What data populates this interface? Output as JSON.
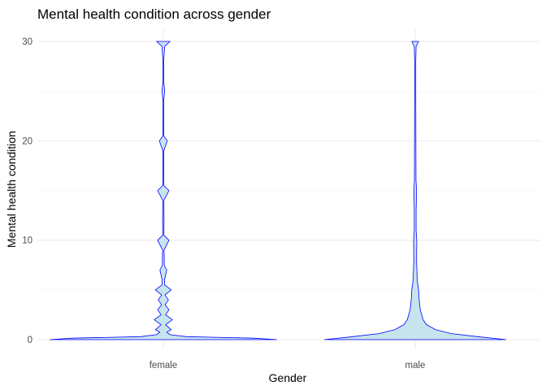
{
  "chart_data": {
    "type": "violin",
    "title": "Mental health condition across gender",
    "xlabel": "Gender",
    "ylabel": "Mental health condition",
    "categories": [
      "female",
      "male"
    ],
    "ylim": [
      0,
      30
    ],
    "yticks": [
      0,
      10,
      20,
      30
    ],
    "grid": true,
    "legend": "none",
    "colors": {
      "fill": "#c6e4ee",
      "outline": "#0000ff"
    },
    "density": [
      {
        "name": "female",
        "profile": [
          [
            0,
            1.0
          ],
          [
            0.15,
            0.8
          ],
          [
            0.3,
            0.2
          ],
          [
            0.5,
            0.06
          ],
          [
            0.75,
            0.03
          ],
          [
            1,
            0.07
          ],
          [
            1.5,
            0.02
          ],
          [
            2,
            0.08
          ],
          [
            2.5,
            0.02
          ],
          [
            3,
            0.05
          ],
          [
            3.5,
            0.015
          ],
          [
            4,
            0.045
          ],
          [
            4.5,
            0.015
          ],
          [
            5,
            0.07
          ],
          [
            5.5,
            0.012
          ],
          [
            6,
            0.01
          ],
          [
            7,
            0.03
          ],
          [
            7.5,
            0.008
          ],
          [
            8,
            0.008
          ],
          [
            9,
            0.006
          ],
          [
            10,
            0.05
          ],
          [
            10.5,
            0.005
          ],
          [
            12,
            0.006
          ],
          [
            14,
            0.005
          ],
          [
            15,
            0.05
          ],
          [
            15.5,
            0.005
          ],
          [
            17,
            0.004
          ],
          [
            19,
            0.004
          ],
          [
            20,
            0.035
          ],
          [
            20.5,
            0.004
          ],
          [
            22,
            0.003
          ],
          [
            24,
            0.003
          ],
          [
            25,
            0.012
          ],
          [
            26,
            0.003
          ],
          [
            28,
            0.003
          ],
          [
            29.5,
            0.012
          ],
          [
            29.7,
            0.03
          ],
          [
            30,
            0.06
          ]
        ]
      },
      {
        "name": "male",
        "profile": [
          [
            0,
            0.8
          ],
          [
            0.3,
            0.55
          ],
          [
            0.6,
            0.32
          ],
          [
            1,
            0.18
          ],
          [
            1.5,
            0.1
          ],
          [
            2,
            0.07
          ],
          [
            3,
            0.045
          ],
          [
            4,
            0.035
          ],
          [
            5,
            0.03
          ],
          [
            6,
            0.018
          ],
          [
            8,
            0.012
          ],
          [
            10,
            0.014
          ],
          [
            11,
            0.008
          ],
          [
            13,
            0.008
          ],
          [
            15,
            0.012
          ],
          [
            16,
            0.007
          ],
          [
            20,
            0.006
          ],
          [
            25,
            0.005
          ],
          [
            28,
            0.005
          ],
          [
            29.5,
            0.008
          ],
          [
            30,
            0.03
          ]
        ]
      }
    ]
  }
}
